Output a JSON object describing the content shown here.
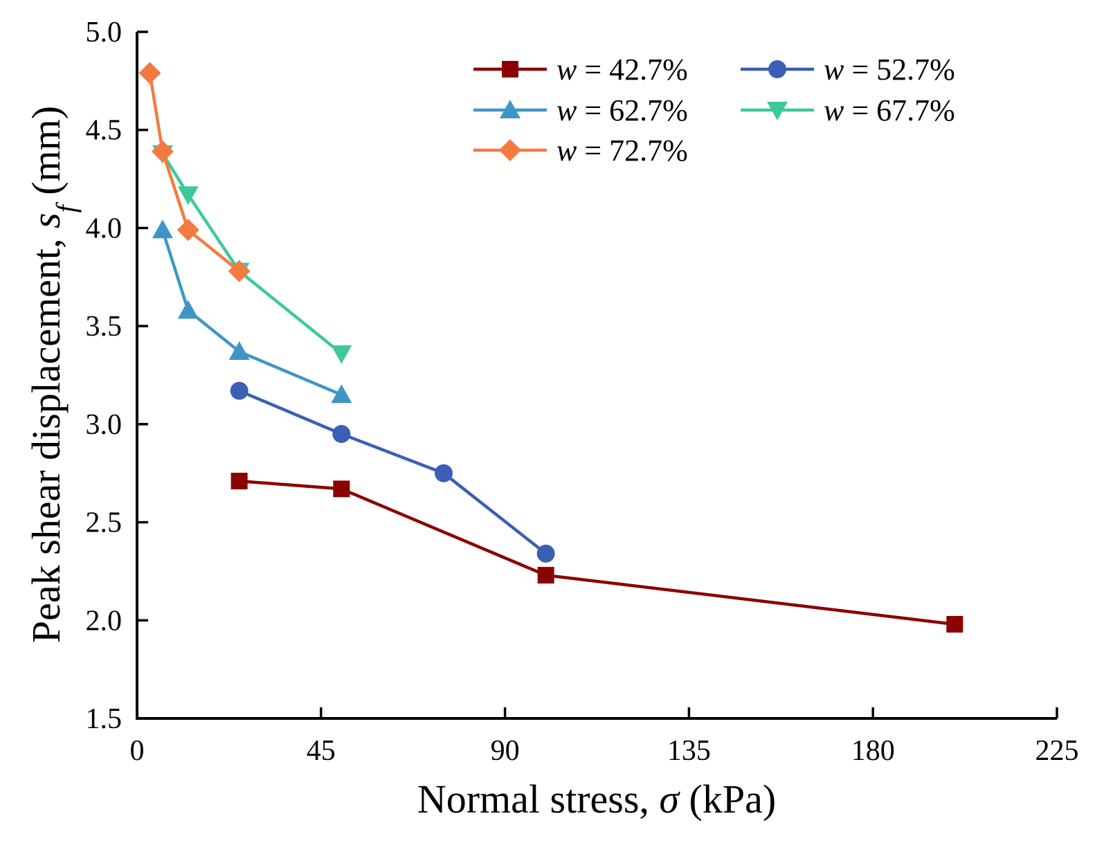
{
  "chart_data": {
    "type": "line",
    "title": "",
    "xlabel": {
      "prefix": "Normal stress, ",
      "symbol": "σ",
      "suffix": " (kPa)"
    },
    "ylabel": {
      "prefix": "Peak shear displacement, ",
      "symbol": "s",
      "subscript": "f",
      "suffix": " (mm)"
    },
    "xlim": [
      0,
      225
    ],
    "ylim": [
      1.5,
      5.0
    ],
    "xticks": [
      "0",
      "45",
      "90",
      "135",
      "180",
      "225"
    ],
    "xtick_values": [
      0,
      45,
      90,
      135,
      180,
      225
    ],
    "yticks": [
      "1.5",
      "2.0",
      "2.5",
      "3.0",
      "3.5",
      "4.0",
      "4.5",
      "5.0"
    ],
    "ytick_values": [
      1.5,
      2.0,
      2.5,
      3.0,
      3.5,
      4.0,
      4.5,
      5.0
    ],
    "grid": false,
    "legend_position": "top-right",
    "series": [
      {
        "name_var": "w",
        "name_rest": " = 42.7%",
        "color": "#8b0000",
        "marker": "square",
        "x": [
          25,
          50,
          100,
          200
        ],
        "y": [
          2.71,
          2.67,
          2.23,
          1.98
        ]
      },
      {
        "name_var": "w",
        "name_rest": " = 52.7%",
        "color": "#3a5fb5",
        "marker": "circle",
        "x": [
          25,
          50,
          75,
          100
        ],
        "y": [
          3.17,
          2.95,
          2.75,
          2.34
        ]
      },
      {
        "name_var": "w",
        "name_rest": " = 62.7%",
        "color": "#3f96c6",
        "marker": "triangle-up",
        "x": [
          6.25,
          12.5,
          25,
          50
        ],
        "y": [
          3.99,
          3.58,
          3.37,
          3.15
        ]
      },
      {
        "name_var": "w",
        "name_rest": " = 67.7%",
        "color": "#3ec99a",
        "marker": "triangle-down",
        "x": [
          6.25,
          12.5,
          25,
          50
        ],
        "y": [
          4.38,
          4.17,
          3.78,
          3.36
        ]
      },
      {
        "name_var": "w",
        "name_rest": " = 72.7%",
        "color": "#f47a42",
        "marker": "diamond",
        "x": [
          3.125,
          6.25,
          12.5,
          25
        ],
        "y": [
          4.79,
          4.39,
          3.99,
          3.78
        ]
      }
    ]
  }
}
